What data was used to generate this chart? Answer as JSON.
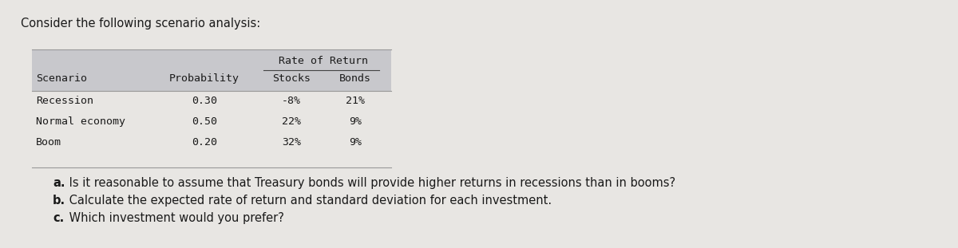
{
  "title": "Consider the following scenario analysis:",
  "bg_color": "#e8e6e3",
  "table_header_bg": "#c8c8cc",
  "header_top": "Rate of Return",
  "col_headers": [
    "Scenario",
    "Probability",
    "Stocks",
    "Bonds"
  ],
  "rows": [
    [
      "Recession",
      "0.30",
      "-8%",
      "21%"
    ],
    [
      "Normal economy",
      "0.50",
      "22%",
      "9%"
    ],
    [
      "Boom",
      "0.20",
      "32%",
      "9%"
    ]
  ],
  "questions": [
    [
      "a.",
      " Is it reasonable to assume that Treasury bonds will provide higher returns in recessions than in booms?"
    ],
    [
      "b.",
      " Calculate the expected rate of return and standard deviation for each investment."
    ],
    [
      "c.",
      " Which investment would you prefer?"
    ]
  ],
  "table_font": "monospace",
  "title_font": "DejaVu Sans",
  "question_font": "DejaVu Sans",
  "title_fontsize": 10.5,
  "table_fontsize": 9.5,
  "question_fontsize": 10.5
}
